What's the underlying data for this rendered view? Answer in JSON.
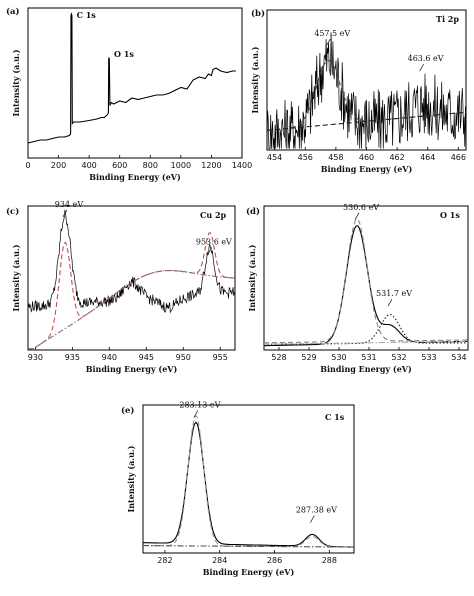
{
  "chart_data": [
    {
      "panel": "(a)",
      "type": "line",
      "xlabel": "Binding Energy (eV)",
      "ylabel": "Intensity (a.u.)",
      "xlim": [
        0,
        1400
      ],
      "ylim": [
        0,
        1
      ],
      "xticks": [
        0,
        200,
        400,
        600,
        800,
        1000,
        1200,
        1400
      ],
      "yticks": [],
      "annotations": [
        {
          "text": "C 1s",
          "x": 285,
          "y": 0.96
        },
        {
          "text": "O 1s",
          "x": 530,
          "y": 0.7
        }
      ],
      "series": [
        {
          "style": "solid",
          "color": "#000000",
          "x": [
            0,
            40,
            80,
            120,
            160,
            200,
            240,
            270,
            279,
            281,
            284,
            287,
            290,
            300,
            340,
            400,
            450,
            480,
            500,
            520,
            526,
            528,
            530,
            532,
            536,
            545,
            560,
            600,
            640,
            680,
            720,
            760,
            800,
            840,
            880,
            920,
            960,
            1000,
            1040,
            1080,
            1120,
            1160,
            1180,
            1200,
            1210,
            1230,
            1260,
            1300,
            1340,
            1360
          ],
          "y": [
            0.1,
            0.11,
            0.12,
            0.12,
            0.13,
            0.14,
            0.14,
            0.15,
            0.16,
            0.95,
            0.96,
            0.95,
            0.23,
            0.24,
            0.24,
            0.25,
            0.26,
            0.27,
            0.27,
            0.29,
            0.3,
            0.66,
            0.67,
            0.66,
            0.35,
            0.37,
            0.36,
            0.38,
            0.37,
            0.4,
            0.39,
            0.4,
            0.41,
            0.42,
            0.42,
            0.43,
            0.45,
            0.47,
            0.46,
            0.52,
            0.54,
            0.53,
            0.56,
            0.55,
            0.59,
            0.6,
            0.58,
            0.57,
            0.58,
            0.58
          ]
        }
      ]
    },
    {
      "panel": "(b)",
      "element": "Ti 2p",
      "type": "line",
      "xlabel": "Binding Energy (eV)",
      "ylabel": "Intensity (a.u.)",
      "xlim": [
        453.5,
        466.5
      ],
      "ylim": [
        0,
        1
      ],
      "xticks": [
        454,
        456,
        458,
        460,
        462,
        464,
        466
      ],
      "yticks": [],
      "annotations": [
        {
          "text": "457.5 eV",
          "x": 457.5,
          "y": 0.8
        },
        {
          "text": "463.6 eV",
          "x": 463.6,
          "y": 0.62
        }
      ],
      "series": [
        {
          "style": "noisy",
          "color": "#000000",
          "peaks": [
            {
              "center": 457.5,
              "height": 0.48,
              "width": 1.1
            },
            {
              "center": 463.6,
              "height": 0.1,
              "width": 1.3
            }
          ],
          "baseline": [
            0.12,
            0.26
          ],
          "noise": 0.24
        },
        {
          "style": "dashed",
          "color": "#444444",
          "peaks": [
            {
              "center": 457.5,
              "height": 0.46,
              "width": 1.1
            }
          ],
          "baseline": [
            0.14,
            0.27
          ]
        },
        {
          "style": "dashed",
          "color": "#222222",
          "peaks": [],
          "baseline": [
            0.14,
            0.27
          ]
        }
      ]
    },
    {
      "panel": "(c)",
      "element": "Cu 2p",
      "type": "line",
      "xlabel": "Binding Energy (eV)",
      "ylabel": "Intensity (a.u.)",
      "xlim": [
        929,
        957
      ],
      "ylim": [
        0,
        1
      ],
      "xticks": [
        930,
        935,
        940,
        945,
        950,
        955
      ],
      "yticks": [],
      "annotations": [
        {
          "text": "934 eV",
          "x": 934,
          "y": 0.98
        },
        {
          "text": "953.6 eV",
          "x": 953.6,
          "y": 0.72
        }
      ],
      "series": [
        {
          "style": "noisy",
          "color": "#000000",
          "peaks": [
            {
              "center": 934,
              "height": 0.62,
              "width": 1.1
            },
            {
              "center": 943,
              "height": 0.12,
              "width": 1.5
            },
            {
              "center": 953.6,
              "height": 0.33,
              "width": 0.9
            }
          ],
          "baseline": [
            0.3,
            0.4
          ],
          "noise": 0.04,
          "dip": {
            "center": 948,
            "depth": 0.07,
            "width": 1.8
          }
        },
        {
          "style": "dashed",
          "color": "#c0504d",
          "peaks": [
            {
              "center": 934,
              "height": 0.6,
              "width": 1.1
            },
            {
              "center": 953.6,
              "height": 0.3,
              "width": 0.9
            }
          ],
          "baseline": [
            0.12,
            0.58
          ],
          "hump": true
        },
        {
          "style": "dash-dot",
          "color": "#8b6a8a",
          "peaks": [],
          "baseline": [
            0.12,
            0.58
          ],
          "hump": true
        }
      ]
    },
    {
      "panel": "(d)",
      "element": "O 1s",
      "type": "line",
      "xlabel": "Binding Energy (eV)",
      "ylabel": "Intensity (a.u.)",
      "xlim": [
        527.5,
        534.3
      ],
      "ylim": [
        0,
        1
      ],
      "xticks": [
        528,
        529,
        530,
        531,
        532,
        533,
        534
      ],
      "yticks": [],
      "annotations": [
        {
          "text": "530.6 eV",
          "x": 530.6,
          "y": 0.96
        },
        {
          "text": "531.7 eV",
          "x": 531.7,
          "y": 0.36
        }
      ],
      "series": [
        {
          "style": "solid",
          "color": "#000000",
          "peaks": [
            {
              "center": 530.6,
              "height": 0.82,
              "width": 0.5
            },
            {
              "center": 531.7,
              "height": 0.12,
              "width": 0.45
            }
          ],
          "baseline": [
            0.03,
            0.06
          ]
        },
        {
          "style": "dashed",
          "color": "#888888",
          "peaks": [
            {
              "center": 530.6,
              "height": 0.85,
              "width": 0.48
            }
          ],
          "baseline": [
            0.05,
            0.07
          ]
        },
        {
          "style": "dotted",
          "color": "#222222",
          "peaks": [
            {
              "center": 531.7,
              "height": 0.2,
              "width": 0.45
            }
          ],
          "baseline": [
            0.04,
            0.05
          ]
        },
        {
          "style": "dash-dot",
          "color": "#aaaaaa",
          "peaks": [],
          "baseline": [
            0.04,
            0.06
          ]
        }
      ]
    },
    {
      "panel": "(e)",
      "element": "C 1s",
      "type": "line",
      "xlabel": "Binding Energy (eV)",
      "ylabel": "Intensity (a.u.)",
      "xlim": [
        281.2,
        288.9
      ],
      "ylim": [
        0,
        1
      ],
      "xticks": [
        282,
        284,
        286,
        288
      ],
      "yticks": [],
      "annotations": [
        {
          "text": "283.13 eV",
          "x": 283.13,
          "y": 0.97
        },
        {
          "text": "287.38 eV",
          "x": 287.38,
          "y": 0.26
        }
      ],
      "series": [
        {
          "style": "solid",
          "color": "#000000",
          "peaks": [
            {
              "center": 283.13,
              "height": 0.82,
              "width": 0.42
            },
            {
              "center": 287.38,
              "height": 0.08,
              "width": 0.35
            }
          ],
          "baseline": [
            0.07,
            0.04
          ]
        },
        {
          "style": "dashed",
          "color": "#9a9a9a",
          "peaks": [
            {
              "center": 283.13,
              "height": 0.88,
              "width": 0.4
            },
            {
              "center": 287.38,
              "height": 0.07,
              "width": 0.35
            }
          ],
          "baseline": [
            0.05,
            0.04
          ]
        },
        {
          "style": "dash-dot",
          "color": "#555555",
          "peaks": [],
          "baseline": [
            0.05,
            0.04
          ]
        }
      ]
    }
  ]
}
